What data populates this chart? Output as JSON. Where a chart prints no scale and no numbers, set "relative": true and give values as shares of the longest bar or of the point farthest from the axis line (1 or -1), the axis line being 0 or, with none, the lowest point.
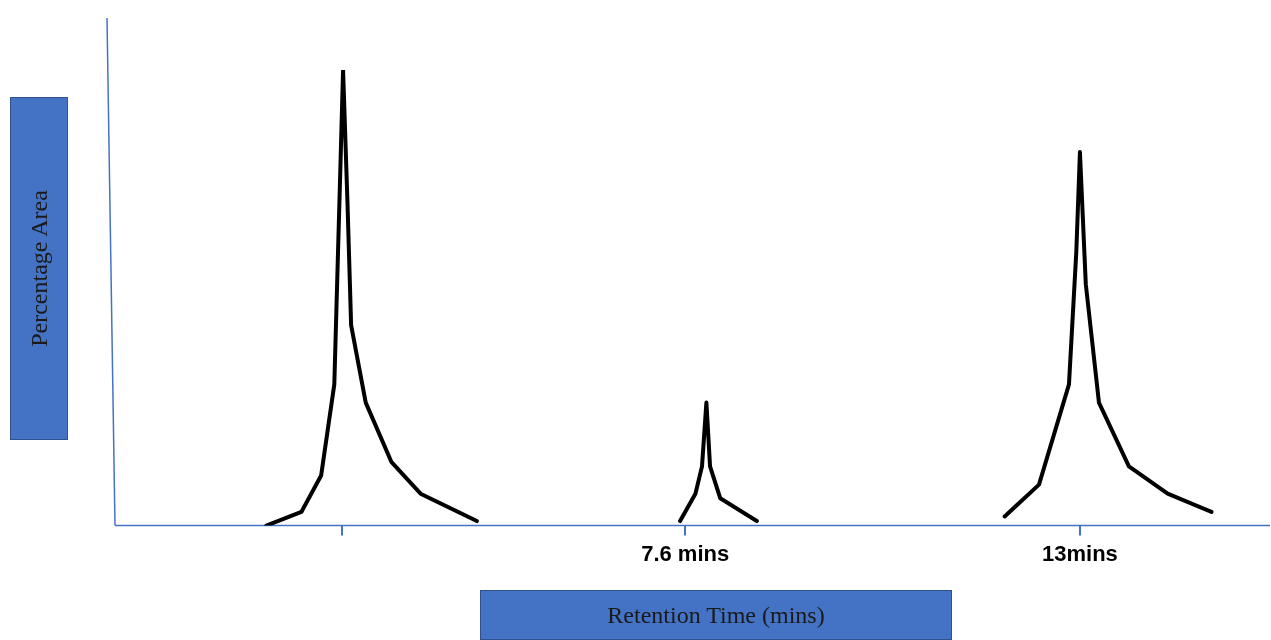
{
  "chart_data": {
    "type": "line",
    "xlabel": "Retention Time (mins)",
    "ylabel": "Percentage Area",
    "relative": true,
    "xlim": [
      -0.2,
      15.6
    ],
    "xticks": [
      {
        "value": 2.9,
        "label": null
      },
      {
        "value": 7.6,
        "label": "7.6 mins"
      },
      {
        "value": 13,
        "label": "13mins"
      }
    ],
    "series": [
      {
        "color": "#000000",
        "x": [
          1.87,
          2.35,
          2.62,
          2.8,
          2.87,
          2.92,
          2.98,
          3.03,
          3.23,
          3.58,
          3.98,
          4.75
        ],
        "values": [
          0,
          0.03,
          0.11,
          0.31,
          0.71,
          1,
          0.71,
          0.44,
          0.27,
          0.14,
          0.07,
          0.01
        ]
      },
      {
        "color": "#000000",
        "x": [
          7.53,
          7.74,
          7.83,
          7.89,
          7.94,
          8.08,
          8.58
        ],
        "values": [
          0.01,
          0.07,
          0.13,
          0.27,
          0.13,
          0.06,
          0.01
        ]
      },
      {
        "color": "#000000",
        "x": [
          11.97,
          12.44,
          12.85,
          12.95,
          13.0,
          13.08,
          13.26,
          13.67,
          14.2,
          14.8
        ],
        "values": [
          0.02,
          0.09,
          0.31,
          0.6,
          0.82,
          0.53,
          0.27,
          0.13,
          0.07,
          0.03
        ]
      }
    ],
    "grid": false,
    "legend": false,
    "marker": "none",
    "line_style": "solid"
  }
}
